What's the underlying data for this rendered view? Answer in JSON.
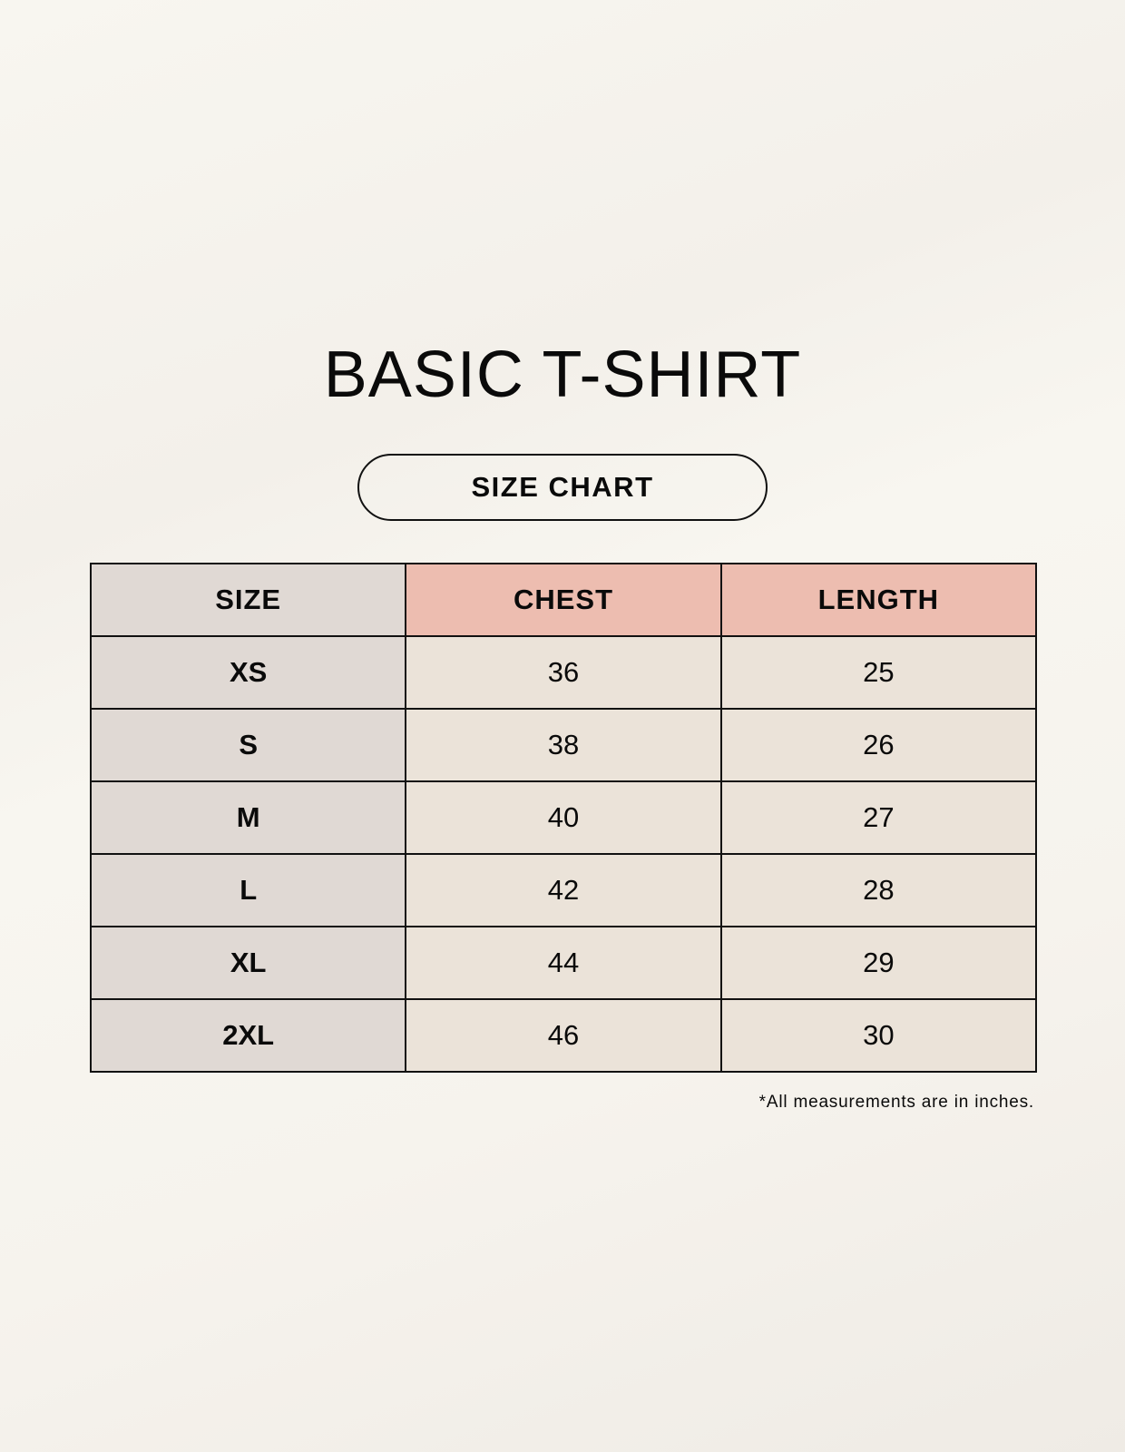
{
  "title": "BASIC T-SHIRT",
  "subtitle": "SIZE CHART",
  "table": {
    "headers": [
      "SIZE",
      "CHEST",
      "LENGTH"
    ],
    "rows": [
      [
        "XS",
        "36",
        "25"
      ],
      [
        "S",
        "38",
        "26"
      ],
      [
        "M",
        "40",
        "27"
      ],
      [
        "L",
        "42",
        "28"
      ],
      [
        "XL",
        "44",
        "29"
      ],
      [
        "2XL",
        "46",
        "30"
      ]
    ]
  },
  "note": "*All measurements are in inches.",
  "colors": {
    "header_accent": "#edbdb0",
    "size_column": "#e0d9d4",
    "cell": "#ebe3d9"
  }
}
